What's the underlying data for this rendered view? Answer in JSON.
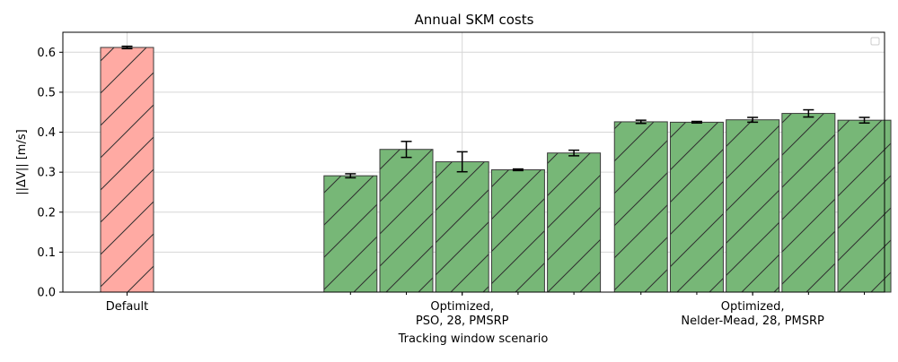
{
  "chart_data": {
    "type": "bar",
    "title": "Annual SKM costs",
    "xlabel": "Tracking window scenario",
    "ylabel": "||ΔV|| [m/s]",
    "ylim": [
      0,
      0.65
    ],
    "yticks": [
      0.0,
      0.1,
      0.2,
      0.3,
      0.4,
      0.5,
      0.6
    ],
    "ytick_labels": [
      "0.0",
      "0.1",
      "0.2",
      "0.3",
      "0.4",
      "0.5",
      "0.6"
    ],
    "grid": true,
    "legend": "top-right",
    "groups": [
      {
        "label": "Default",
        "label_lines": [
          "Default"
        ]
      },
      {
        "label": "Optimized, PSO, 28, PMSRP",
        "label_lines": [
          "Optimized,",
          "PSO, 28, PMSRP"
        ]
      },
      {
        "label": "Optimized, Nelder-Mead, 28, PMSRP",
        "label_lines": [
          "Optimized,",
          "Nelder-Mead, 28, PMSRP"
        ]
      }
    ],
    "bars": [
      {
        "group": 0,
        "value": 0.612,
        "error": 0.003,
        "color": "#ffaaa3"
      },
      {
        "group": 1,
        "value": 0.291,
        "error": 0.005,
        "color": "#77b777"
      },
      {
        "group": 1,
        "value": 0.357,
        "error": 0.02,
        "color": "#77b777"
      },
      {
        "group": 1,
        "value": 0.326,
        "error": 0.025,
        "color": "#77b777"
      },
      {
        "group": 1,
        "value": 0.306,
        "error": 0.002,
        "color": "#77b777"
      },
      {
        "group": 1,
        "value": 0.348,
        "error": 0.007,
        "color": "#77b777"
      },
      {
        "group": 2,
        "value": 0.426,
        "error": 0.004,
        "color": "#77b777"
      },
      {
        "group": 2,
        "value": 0.425,
        "error": 0.002,
        "color": "#77b777"
      },
      {
        "group": 2,
        "value": 0.431,
        "error": 0.006,
        "color": "#77b777"
      },
      {
        "group": 2,
        "value": 0.447,
        "error": 0.009,
        "color": "#77b777"
      },
      {
        "group": 2,
        "value": 0.43,
        "error": 0.007,
        "color": "#77b777"
      }
    ],
    "colors": {
      "default": "#ffaaa3",
      "optimized": "#77b777",
      "edge": "#3a3a3a",
      "grid": "#d6d6d6"
    }
  }
}
